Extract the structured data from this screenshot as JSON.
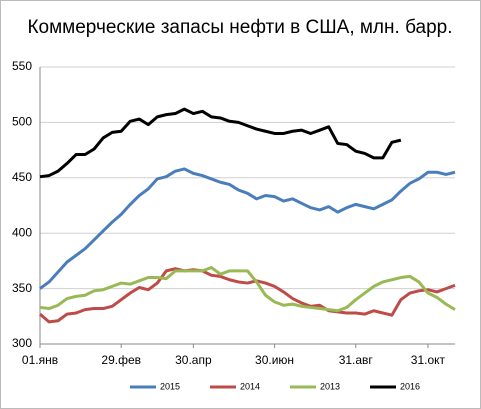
{
  "chart_data": {
    "type": "line",
    "title": "Коммерческие  запасы нефти в США, млн. барр.",
    "categories": [
      "01.янв",
      null,
      null,
      null,
      null,
      null,
      null,
      null,
      null,
      "29.фев",
      null,
      null,
      null,
      null,
      null,
      null,
      null,
      "30.апр",
      null,
      null,
      null,
      null,
      null,
      null,
      null,
      null,
      "30.июн",
      null,
      null,
      null,
      null,
      null,
      null,
      null,
      null,
      "31.авг",
      null,
      null,
      null,
      null,
      null,
      null,
      null,
      "31.окт",
      null,
      null,
      null
    ],
    "series": [
      {
        "name": "2015",
        "color": "#4a7ebb",
        "values": [
          350,
          356,
          365,
          374,
          380,
          386,
          394,
          402,
          410,
          417,
          426,
          434,
          440,
          449,
          451,
          456,
          458,
          454,
          452,
          449,
          446,
          444,
          439,
          436,
          431,
          434,
          433,
          429,
          431,
          427,
          423,
          421,
          424,
          419,
          423,
          426,
          424,
          422,
          426,
          430,
          438,
          445,
          449,
          455,
          455,
          453,
          455
        ]
      },
      {
        "name": "2014",
        "color": "#be4b48",
        "values": [
          327,
          320,
          321,
          327,
          328,
          331,
          332,
          332,
          334,
          340,
          346,
          351,
          349,
          355,
          366,
          368,
          366,
          367,
          366,
          362,
          361,
          358,
          356,
          355,
          357,
          355,
          352,
          347,
          341,
          337,
          334,
          335,
          330,
          329,
          328,
          328,
          327,
          330,
          328,
          326,
          340,
          346,
          348,
          349,
          347,
          350,
          353
        ]
      },
      {
        "name": "2013",
        "color": "#98b954",
        "values": [
          333,
          332,
          335,
          341,
          343,
          344,
          348,
          349,
          352,
          355,
          354,
          357,
          360,
          360,
          359,
          366,
          366,
          366,
          366,
          369,
          363,
          366,
          366,
          366,
          356,
          344,
          338,
          335,
          336,
          334,
          333,
          332,
          331,
          330,
          333,
          340,
          346,
          352,
          356,
          358,
          360,
          361,
          356,
          346,
          342,
          336,
          331
        ]
      },
      {
        "name": "2016",
        "color": "#000000",
        "values": [
          451,
          452,
          456,
          463,
          471,
          471,
          476,
          486,
          491,
          492,
          501,
          503,
          498,
          505,
          507,
          508,
          512,
          508,
          510,
          505,
          504,
          501,
          500,
          497,
          494,
          492,
          490,
          490,
          492,
          493,
          490,
          493,
          496,
          481,
          480,
          474,
          472,
          468,
          468,
          482,
          484,
          null,
          null,
          null,
          null,
          null,
          null
        ]
      }
    ],
    "ylim": [
      300,
      550
    ],
    "yticks": [
      300,
      350,
      400,
      450,
      500,
      550
    ],
    "grid": true,
    "legend": "bottom"
  }
}
